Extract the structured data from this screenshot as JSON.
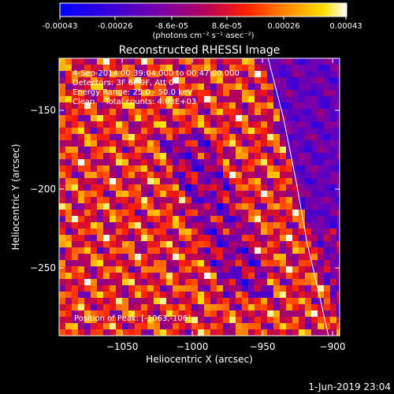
{
  "colorbar": {
    "tick_labels": [
      "-0.00043",
      "-0.00026",
      "-8.6e-05",
      "8.6e-05",
      "0.00026",
      "0.00043"
    ],
    "units_label": "(photons cm⁻² s⁻¹ asec⁻²)"
  },
  "chart_data": {
    "type": "heatmap",
    "title": "Reconstructed RHESSI Image",
    "xlabel": "Heliocentric X (arcsec)",
    "ylabel": "Heliocentric Y (arcsec)",
    "xlim": [
      -1095,
      -895
    ],
    "ylim": [
      -293,
      -117
    ],
    "x_ticks": [
      -1050,
      -1000,
      -950,
      -900
    ],
    "x_tick_labels": [
      "−1050",
      "−1000",
      "−950",
      "−900"
    ],
    "y_ticks": [
      -150,
      -200,
      -250
    ],
    "y_tick_labels": [
      "−150",
      "−200",
      "−250"
    ],
    "value_range": [
      -0.00043,
      0.00043
    ],
    "limb_curve": {
      "x": [
        -946,
        -935,
        -926,
        -918,
        -910,
        -903
      ],
      "y": [
        -117,
        -155,
        -195,
        -235,
        -265,
        -293
      ]
    },
    "annotations": [
      "4-Sep-2014 00:39:04.000 to 00:47:00.000",
      "Detectors: 3F 6F 9F, Att 0",
      "Energy Range: 25.0 - 50.0 keV",
      "Clean    Total counts: 4.03E+03",
      "Position of Peak: [-1063,-106]"
    ]
  },
  "footer": {
    "timestamp": "1-Jun-2019 23:04"
  }
}
